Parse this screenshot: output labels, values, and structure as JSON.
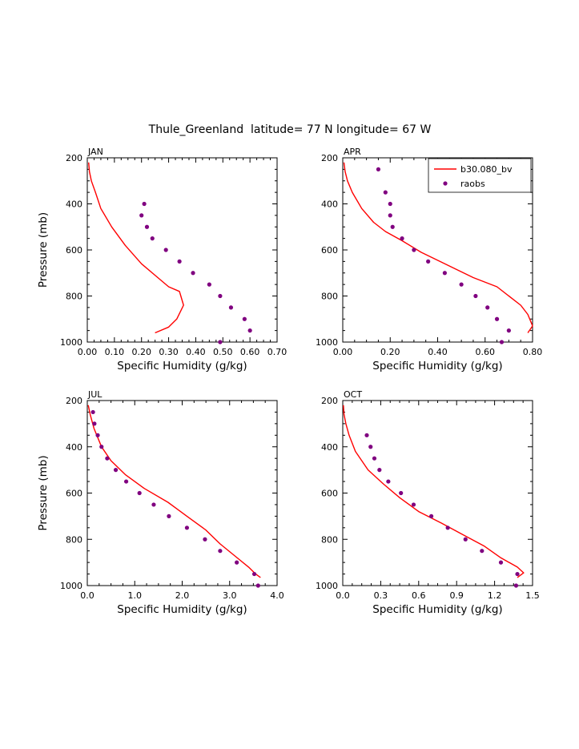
{
  "figure_title": "Thule_Greenland  latitude= 77 N longitude= 67 W",
  "colors": {
    "model": "#ff0000",
    "obs": "#800080",
    "axis": "#000000"
  },
  "legend": {
    "model_label": "b30.080_bv",
    "obs_label": "raobs"
  },
  "chart_data": [
    {
      "type": "line",
      "title": "JAN",
      "xlabel": "Specific Humidity (g/kg)",
      "ylabel": "Pressure (mb)",
      "xlim": [
        0,
        0.7
      ],
      "ylim": [
        200,
        1000
      ],
      "xticks": [
        0,
        0.1,
        0.2,
        0.3,
        0.4,
        0.5,
        0.6,
        0.7
      ],
      "xtick_labels": [
        "0.00",
        "0.10",
        "0.20",
        "0.30",
        "0.40",
        "0.50",
        "0.60",
        "0.70"
      ],
      "yticks": [
        200,
        400,
        600,
        800,
        1000
      ],
      "ytick_labels": [
        "200",
        "400",
        "600",
        "800",
        "1000"
      ],
      "series": [
        {
          "name": "b30.080_bv",
          "style": "line",
          "x": [
            0.005,
            0.008,
            0.015,
            0.03,
            0.05,
            0.09,
            0.14,
            0.2,
            0.26,
            0.3,
            0.34,
            0.345,
            0.355,
            0.33,
            0.3,
            0.25
          ],
          "y": [
            220,
            260,
            300,
            350,
            420,
            500,
            580,
            660,
            720,
            760,
            780,
            800,
            840,
            900,
            935,
            960
          ]
        },
        {
          "name": "raobs",
          "style": "markers",
          "x": [
            0.21,
            0.2,
            0.22,
            0.24,
            0.29,
            0.34,
            0.39,
            0.45,
            0.49,
            0.53,
            0.58,
            0.6,
            0.49
          ],
          "y": [
            400,
            450,
            500,
            550,
            600,
            650,
            700,
            750,
            800,
            850,
            900,
            950,
            1000
          ]
        }
      ]
    },
    {
      "type": "line",
      "title": "APR",
      "xlabel": "Specific Humidity (g/kg)",
      "ylabel": "",
      "xlim": [
        0,
        0.8
      ],
      "ylim": [
        200,
        1000
      ],
      "xticks": [
        0,
        0.2,
        0.4,
        0.6,
        0.8
      ],
      "xtick_labels": [
        "0.00",
        "0.20",
        "0.40",
        "0.60",
        "0.80"
      ],
      "yticks": [
        200,
        400,
        600,
        800,
        1000
      ],
      "ytick_labels": [
        "200",
        "400",
        "600",
        "800",
        "1000"
      ],
      "legend": "top-right",
      "series": [
        {
          "name": "b30.080_bv",
          "style": "line",
          "x": [
            0.005,
            0.01,
            0.02,
            0.04,
            0.08,
            0.13,
            0.18,
            0.25,
            0.33,
            0.45,
            0.55,
            0.65,
            0.75,
            0.78,
            0.8,
            0.78
          ],
          "y": [
            220,
            260,
            300,
            350,
            420,
            480,
            520,
            560,
            610,
            670,
            720,
            760,
            840,
            880,
            930,
            960
          ]
        },
        {
          "name": "raobs",
          "style": "markers",
          "x": [
            0.15,
            0.18,
            0.2,
            0.2,
            0.21,
            0.25,
            0.3,
            0.36,
            0.43,
            0.5,
            0.56,
            0.61,
            0.65,
            0.7,
            0.67
          ],
          "y": [
            250,
            350,
            400,
            450,
            500,
            550,
            600,
            650,
            700,
            750,
            800,
            850,
            900,
            950,
            1000
          ]
        }
      ]
    },
    {
      "type": "line",
      "title": "JUL",
      "xlabel": "Specific Humidity (g/kg)",
      "ylabel": "Pressure (mb)",
      "xlim": [
        0,
        4.0
      ],
      "ylim": [
        200,
        1000
      ],
      "xticks": [
        0,
        1,
        2,
        3,
        4
      ],
      "xtick_labels": [
        "0.0",
        "1.0",
        "2.0",
        "3.0",
        "4.0"
      ],
      "yticks": [
        200,
        400,
        600,
        800,
        1000
      ],
      "ytick_labels": [
        "200",
        "400",
        "600",
        "800",
        "1000"
      ],
      "series": [
        {
          "name": "b30.080_bv",
          "style": "line",
          "x": [
            0.02,
            0.06,
            0.14,
            0.3,
            0.5,
            0.8,
            1.2,
            1.7,
            2.1,
            2.5,
            2.8,
            3.1,
            3.4,
            3.55,
            3.65
          ],
          "y": [
            220,
            260,
            320,
            400,
            460,
            520,
            580,
            640,
            700,
            760,
            820,
            870,
            920,
            950,
            965
          ]
        },
        {
          "name": "raobs",
          "style": "markers",
          "x": [
            0.12,
            0.15,
            0.22,
            0.3,
            0.42,
            0.6,
            0.82,
            1.1,
            1.4,
            1.72,
            2.1,
            2.48,
            2.8,
            3.15,
            3.52,
            3.6
          ],
          "y": [
            250,
            300,
            350,
            400,
            450,
            500,
            550,
            600,
            650,
            700,
            750,
            800,
            850,
            900,
            950,
            1000
          ]
        }
      ]
    },
    {
      "type": "line",
      "title": "OCT",
      "xlabel": "Specific Humidity (g/kg)",
      "ylabel": "",
      "xlim": [
        0,
        1.5
      ],
      "ylim": [
        200,
        1000
      ],
      "xticks": [
        0,
        0.3,
        0.6,
        0.9,
        1.2,
        1.5
      ],
      "xtick_labels": [
        "0.0",
        "0.3",
        "0.6",
        "0.9",
        "1.2",
        "1.5"
      ],
      "yticks": [
        200,
        400,
        600,
        800,
        1000
      ],
      "ytick_labels": [
        "200",
        "400",
        "600",
        "800",
        "1000"
      ],
      "series": [
        {
          "name": "b30.080_bv",
          "style": "line",
          "x": [
            0.005,
            0.01,
            0.025,
            0.05,
            0.1,
            0.2,
            0.32,
            0.45,
            0.6,
            0.78,
            0.95,
            1.12,
            1.25,
            1.38,
            1.43,
            1.38
          ],
          "y": [
            220,
            260,
            300,
            350,
            420,
            500,
            560,
            620,
            680,
            730,
            780,
            830,
            880,
            920,
            945,
            965
          ]
        },
        {
          "name": "raobs",
          "style": "markers",
          "x": [
            0.19,
            0.22,
            0.25,
            0.29,
            0.36,
            0.46,
            0.56,
            0.7,
            0.83,
            0.97,
            1.1,
            1.25,
            1.38,
            1.37
          ],
          "y": [
            350,
            400,
            450,
            500,
            550,
            600,
            650,
            700,
            750,
            800,
            850,
            900,
            950,
            1000
          ]
        }
      ]
    }
  ]
}
